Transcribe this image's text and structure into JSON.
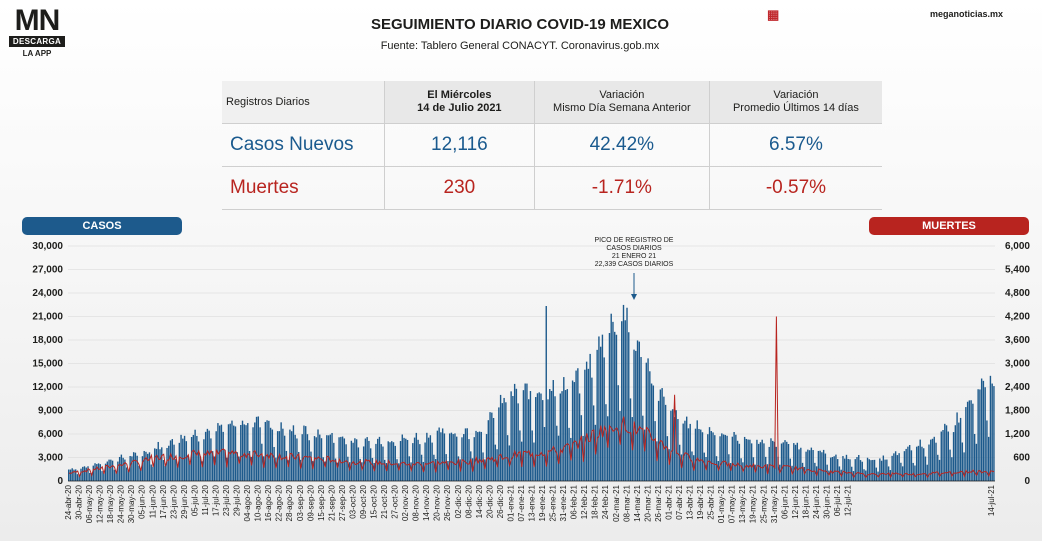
{
  "logo": {
    "mark": "MN",
    "bar": "DESCARGA",
    "app": "LA APP"
  },
  "title": "SEGUIMIENTO DIARIO COVID-19 MEXICO",
  "subtitle": "Fuente: Tablero General CONACYT. Coronavirus.gob.mx",
  "site": "meganoticias.mx",
  "flag_icon": "red-square-icon",
  "table": {
    "headers": [
      "Registros Diarios",
      "El Miércoles\n14 de Julio 2021",
      "Variación\nMismo Día Semana Anterior",
      "Variación\nPromedio Últimos 14 días"
    ],
    "rows": [
      {
        "label": "Casos Nuevos",
        "value": "12,116",
        "var_week": "42.42%",
        "var_14d": "6.57%"
      },
      {
        "label": "Muertes",
        "value": "230",
        "var_week": "-1.71%",
        "var_14d": "-0.57%"
      }
    ]
  },
  "colors": {
    "cases": "#1d5a8c",
    "deaths": "#b8241f"
  },
  "chart_data": {
    "type": "bar",
    "left_label": "CASOS",
    "right_label": "MUERTES",
    "left_axis": {
      "min": 0,
      "max": 30000,
      "ticks": [
        "0",
        "3,000",
        "6,000",
        "9,000",
        "12,000",
        "15,000",
        "18,000",
        "21,000",
        "24,000",
        "27,000",
        "30,000"
      ]
    },
    "right_axis": {
      "min": 0,
      "max": 6000,
      "ticks": [
        "0",
        "600",
        "1,200",
        "1,800",
        "2,400",
        "3,000",
        "3,600",
        "4,200",
        "4,800",
        "5,400",
        "6,000"
      ]
    },
    "x_ticks": [
      "24-abr-20",
      "30-abr-20",
      "06-may-20",
      "12-may-20",
      "18-may-20",
      "24-may-20",
      "30-may-20",
      "05-jun-20",
      "11-jun-20",
      "17-jun-20",
      "23-jun-20",
      "29-jun-20",
      "05-jul-20",
      "11-jul-20",
      "17-jul-20",
      "23-jul-20",
      "29-jul-20",
      "04-ago-20",
      "10-ago-20",
      "16-ago-20",
      "22-ago-20",
      "28-ago-20",
      "03-sep-20",
      "09-sep-20",
      "15-sep-20",
      "21-sep-20",
      "27-sep-20",
      "03-oct-20",
      "09-oct-20",
      "15-oct-20",
      "21-oct-20",
      "27-oct-20",
      "02-nov-20",
      "08-nov-20",
      "14-nov-20",
      "20-nov-20",
      "26-nov-20",
      "02-dic-20",
      "08-dic-20",
      "14-dic-20",
      "20-dic-20",
      "26-dic-20",
      "01-ene-21",
      "07-ene-21",
      "13-ene-21",
      "19-ene-21",
      "25-ene-21",
      "31-ene-21",
      "06-feb-21",
      "12-feb-21",
      "18-feb-21",
      "24-feb-21",
      "02-mar-21",
      "08-mar-21",
      "14-mar-21",
      "20-mar-21",
      "26-mar-21",
      "01-abr-21",
      "07-abr-21",
      "13-abr-21",
      "19-abr-21",
      "25-abr-21",
      "01-may-21",
      "07-may-21",
      "13-may-21",
      "19-may-21",
      "25-may-21",
      "31-may-21",
      "06-jun-21",
      "12-jun-21",
      "18-jun-21",
      "24-jun-21",
      "30-jun-21",
      "06-jul-21",
      "12-jul-21",
      "14-jul-21"
    ],
    "series": [
      {
        "name": "CASOS",
        "type": "bar",
        "weekly_values": [
          1400,
          1500,
          1900,
          2300,
          2600,
          2900,
          3200,
          3900,
          4300,
          4900,
          5400,
          5600,
          6100,
          6300,
          6600,
          6900,
          7200,
          6200,
          5800,
          5900,
          5400,
          5300,
          5000,
          4900,
          4500,
          4700,
          4800,
          4900,
          5000,
          5200,
          5600,
          5700,
          5600,
          5900,
          6300,
          8800,
          10000,
          10400,
          10500,
          10800,
          11200,
          11300,
          12800,
          15400,
          17800,
          20000,
          16200,
          14000,
          10500,
          8000,
          7000,
          6400,
          6000,
          5500,
          5200,
          4900,
          4700,
          4500,
          4700,
          4200,
          3900,
          3500,
          3000,
          2800,
          2700,
          2600,
          2500,
          2900,
          3700,
          4100,
          4800,
          5500,
          6500,
          8500,
          10200,
          12116
        ]
      },
      {
        "name": "MUERTES",
        "type": "line",
        "weekly_values": [
          200,
          250,
          300,
          350,
          400,
          450,
          500,
          600,
          620,
          650,
          700,
          680,
          700,
          720,
          700,
          690,
          680,
          640,
          620,
          600,
          580,
          560,
          540,
          500,
          480,
          470,
          460,
          450,
          440,
          450,
          460,
          470,
          480,
          520,
          560,
          600,
          650,
          700,
          720,
          750,
          800,
          900,
          1050,
          1250,
          1400,
          1500,
          1350,
          1200,
          1000,
          800,
          650,
          550,
          500,
          450,
          420,
          400,
          380,
          370,
          360,
          330,
          300,
          270,
          240,
          220,
          200,
          180,
          170,
          200,
          180,
          180,
          200,
          210,
          230,
          240,
          250,
          230
        ]
      }
    ],
    "annotations": [
      {
        "text": [
          "PICO DE REGISTRO DE",
          "CASOS DIARIOS",
          "21 ENERO 21",
          "22,339 CASOS DIARIOS"
        ]
      }
    ]
  }
}
